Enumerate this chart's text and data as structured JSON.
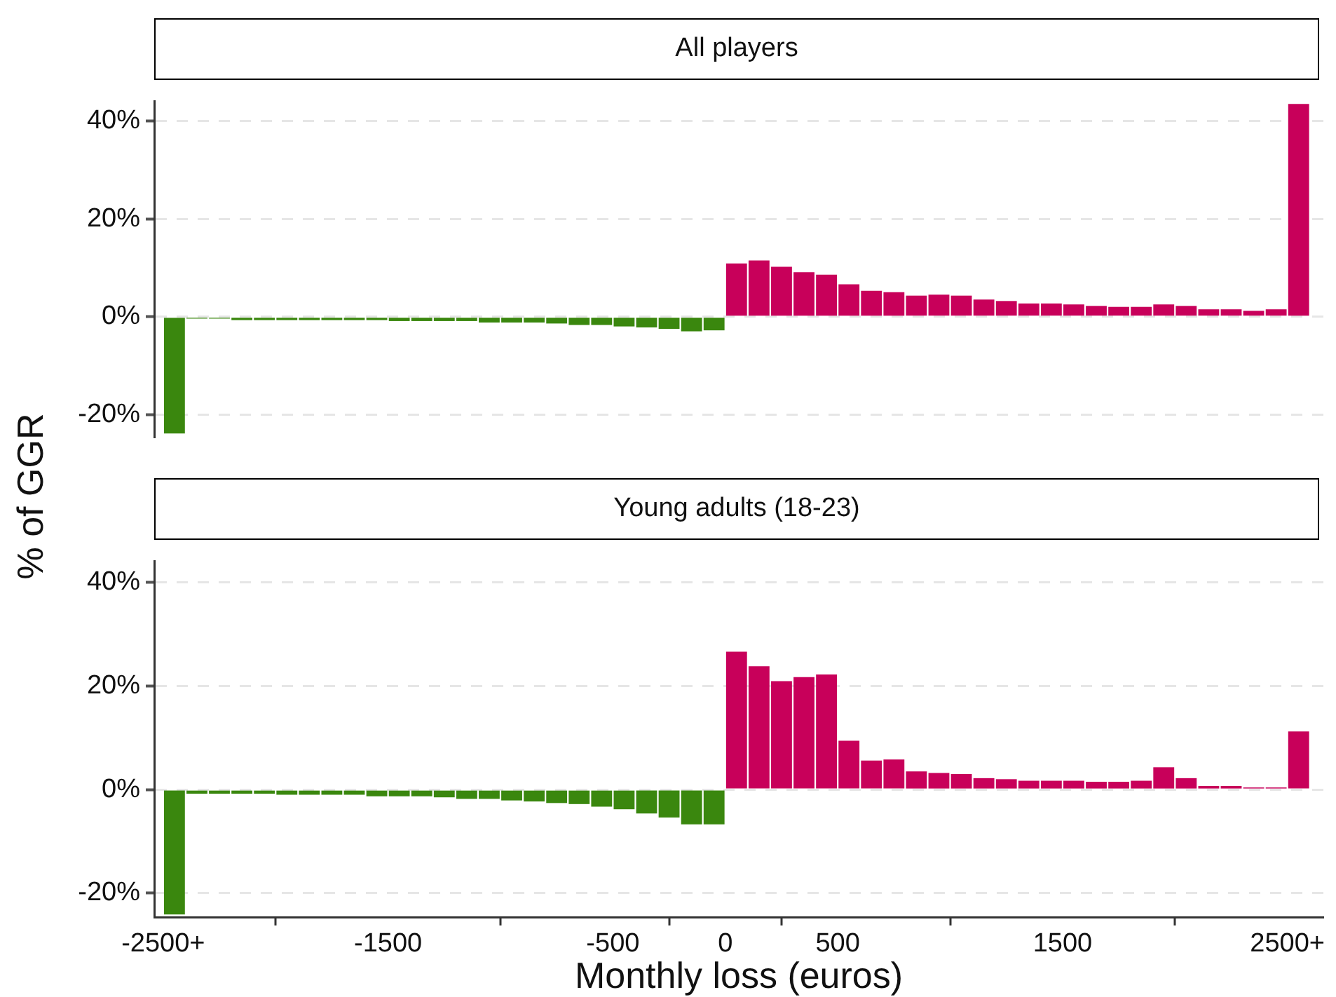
{
  "chart_data": [
    {
      "type": "bar",
      "title": "All players",
      "ylabel": "% of GGR",
      "series": [
        {
          "color": "#3a870e",
          "x": [
            -2450,
            -2350,
            -2250,
            -2150,
            -2050,
            -1950,
            -1850,
            -1750,
            -1650,
            -1550,
            -1450,
            -1350,
            -1250,
            -1150,
            -1050,
            -950,
            -850,
            -750,
            -650,
            -550,
            -450,
            -350,
            -250,
            -150,
            -50
          ],
          "values": [
            -23.9,
            -0.4,
            -0.4,
            -0.7,
            -0.7,
            -0.7,
            -0.7,
            -0.7,
            -0.7,
            -0.7,
            -0.9,
            -0.9,
            -0.9,
            -0.9,
            -1.2,
            -1.2,
            -1.2,
            -1.4,
            -1.7,
            -1.7,
            -2.0,
            -2.2,
            -2.5,
            -3.0,
            -2.8
          ]
        },
        {
          "color": "#c8005a",
          "x": [
            50,
            150,
            250,
            350,
            450,
            550,
            650,
            750,
            850,
            950,
            1050,
            1150,
            1250,
            1350,
            1450,
            1550,
            1650,
            1750,
            1850,
            1950,
            2050,
            2150,
            2250,
            2350,
            2450,
            2550
          ],
          "values": [
            10.9,
            11.5,
            10.2,
            9.1,
            8.6,
            6.6,
            5.3,
            5.0,
            4.3,
            4.5,
            4.3,
            3.5,
            3.2,
            2.7,
            2.7,
            2.5,
            2.2,
            2.0,
            2.0,
            2.5,
            2.2,
            1.5,
            1.5,
            1.2,
            1.5,
            43.5
          ]
        }
      ],
      "xlim": [
        -2540,
        2660
      ],
      "ylim": [
        -24.6,
        44
      ],
      "yticks": [
        {
          "value": -20,
          "label": "-20%"
        },
        {
          "value": 0,
          "label": "0%"
        },
        {
          "value": 20,
          "label": "20%"
        },
        {
          "value": 40,
          "label": "40%"
        }
      ],
      "grid": "y",
      "tick_labels": "y"
    },
    {
      "type": "bar",
      "title": "Young adults (18-23)",
      "xlabel": "Monthly loss (euros)",
      "series": [
        {
          "color": "#3a870e",
          "x": [
            -2450,
            -2350,
            -2250,
            -2150,
            -2050,
            -1950,
            -1850,
            -1750,
            -1650,
            -1550,
            -1450,
            -1350,
            -1250,
            -1150,
            -1050,
            -950,
            -850,
            -750,
            -650,
            -550,
            -450,
            -350,
            -250,
            -150,
            -50
          ],
          "values": [
            -24.1,
            -0.8,
            -0.8,
            -0.8,
            -0.8,
            -1.0,
            -1.0,
            -1.0,
            -1.0,
            -1.3,
            -1.3,
            -1.3,
            -1.5,
            -1.8,
            -1.8,
            -2.1,
            -2.3,
            -2.6,
            -2.8,
            -3.3,
            -3.8,
            -4.6,
            -5.4,
            -6.7,
            -6.7
          ]
        },
        {
          "color": "#c8005a",
          "x": [
            50,
            150,
            250,
            350,
            450,
            550,
            650,
            750,
            850,
            950,
            1050,
            1150,
            1250,
            1350,
            1450,
            1550,
            1650,
            1750,
            1850,
            1950,
            2050,
            2150,
            2250,
            2350,
            2450,
            2550
          ],
          "values": [
            26.6,
            23.8,
            20.9,
            21.7,
            22.2,
            9.4,
            5.6,
            5.8,
            3.5,
            3.2,
            3.0,
            2.2,
            2.0,
            1.7,
            1.7,
            1.7,
            1.5,
            1.5,
            1.7,
            4.3,
            2.2,
            0.7,
            0.7,
            0.4,
            0.4,
            11.2
          ]
        }
      ],
      "xlim": [
        -2540,
        2660
      ],
      "xticks": [
        {
          "value": -2500,
          "label": "-2500+"
        },
        -1500,
        -500,
        0,
        500,
        1500,
        {
          "value": 2500,
          "label": "2500+"
        }
      ],
      "ylim": [
        -24.6,
        44
      ],
      "yticks": [
        {
          "value": -20,
          "label": "-20%"
        },
        {
          "value": 0,
          "label": "0%"
        },
        {
          "value": 20,
          "label": "20%"
        },
        {
          "value": 40,
          "label": "40%"
        }
      ],
      "grid": "y"
    }
  ]
}
